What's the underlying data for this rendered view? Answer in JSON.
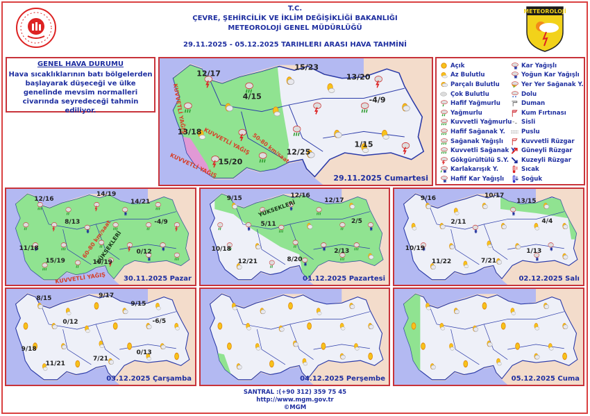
{
  "header": {
    "line1": "T.C.",
    "line2": "ÇEVRE, ŞEHİRCİLİK VE İKLİM DEĞİŞİKLİĞİ BAKANLIĞI",
    "line3": "METEOROLOJİ  GENEL  MÜDÜRLÜĞÜ",
    "dates": "29.11.2025  -  05.12.2025    TARIHLERI  ARASI  HAVA  TAHMİNİ",
    "logo_right_text": "METEOROLOJİ"
  },
  "general": {
    "title": "GENEL HAVA DURUMU",
    "text": "Hava sıcaklıklarının batı bölgelerden başlayarak düşeceği ve ülke genelinde mevsim normalleri civarında seyredeceği tahmin ediliyor."
  },
  "legend": [
    {
      "icon": "acik",
      "label": "Açık"
    },
    {
      "icon": "az-bulutlu",
      "label": "Az Bulutlu"
    },
    {
      "icon": "parcali-bulutlu",
      "label": "Parçalı Bulutlu"
    },
    {
      "icon": "cok-bulutlu",
      "label": "Çok Bulutlu"
    },
    {
      "icon": "hafif-yagmurlu",
      "label": "Hafif Yağmurlu"
    },
    {
      "icon": "yagmurlu",
      "label": "Yağmurlu"
    },
    {
      "icon": "kuvvetli-yagmurlu",
      "label": "Kuvvetli Yağmurlu"
    },
    {
      "icon": "hafif-saganak",
      "label": "Hafif Sağanak Y."
    },
    {
      "icon": "saganak",
      "label": "Sağanak Yağışlı"
    },
    {
      "icon": "kuvvetli-saganak",
      "label": "Kuvvetli Sağanak Y"
    },
    {
      "icon": "gokgurultulu",
      "label": "Gökgürültülü S.Y."
    },
    {
      "icon": "karlakarisik",
      "label": "Karlakarışık Y."
    },
    {
      "icon": "hafif-kar",
      "label": "Hafif Kar Yağışlı"
    },
    {
      "icon": "kar",
      "label": "Kar Yağışlı"
    },
    {
      "icon": "yogun-kar",
      "label": "Yoğun Kar Yağışlı"
    },
    {
      "icon": "yer-yer-saganak",
      "label": "Yer Yer Sağanak Y."
    },
    {
      "icon": "dolu",
      "label": "Dolu"
    },
    {
      "icon": "duman",
      "label": "Duman"
    },
    {
      "icon": "kum-firtinasi",
      "label": "Kum Fırtınası"
    },
    {
      "icon": "sisli",
      "label": "Sisli"
    },
    {
      "icon": "puslu",
      "label": "Puslu"
    },
    {
      "icon": "kuvvetli-ruzgar",
      "label": "Kuvvetli Rüzgar"
    },
    {
      "icon": "guneyli-ruzgar",
      "label": "Güneyli Rüzgar"
    },
    {
      "icon": "kuzeyli-ruzgar",
      "label": "Kuzeyli Rüzgar"
    },
    {
      "icon": "sicak",
      "label": "Sıcak"
    },
    {
      "icon": "soguk",
      "label": "Soğuk"
    }
  ],
  "colors": {
    "title_blue": "#1f2fa0",
    "border_red": "#c8333a",
    "rain_zone": "#7fe07f",
    "warning_zone": "#f08ce0",
    "sea": "#b3b9f2",
    "land": "#eef0f8",
    "neighbors": "#f3dccb"
  },
  "maps": [
    {
      "date": "29.11.2025 Cumartesi",
      "temps": [
        "12/17",
        "15/23",
        "13/20",
        "4/15",
        "-4/9",
        "13/18",
        "12/25",
        "1/15",
        "15/20"
      ],
      "annotations": [
        "KUVVETLİ YAĞIŞ",
        "KUVVETLİ YAĞIŞ",
        "50-80 km/saat",
        "KUVVETLİ YAĞIŞ"
      ],
      "icons": [
        "gokgurultulu",
        "saganak",
        "parcali-bulutlu",
        "az-bulutlu"
      ]
    },
    {
      "date": "30.11.2025 Pazar",
      "temps": [
        "12/16",
        "14/19",
        "14/21",
        "8/13",
        "-4/9",
        "11/18",
        "15/19",
        "0/12",
        "10/19"
      ],
      "annotations": [
        "60-80 km/saat",
        "YÜKSEKLERİ",
        "KUVVETLİ YAĞIŞ"
      ],
      "icons": [
        "saganak",
        "yagmurlu",
        "gokgurultulu",
        "kar"
      ]
    },
    {
      "date": "01.12.2025 Pazartesi",
      "temps": [
        "9/15",
        "12/16",
        "12/17",
        "5/11",
        "2/5",
        "10/18",
        "12/21",
        "2/13",
        "8/20"
      ],
      "annotations": [
        "YÜKSEKLERİ"
      ],
      "icons": [
        "parcali-bulutlu",
        "yagmurlu",
        "kar",
        "saganak"
      ]
    },
    {
      "date": "02.12.2025 Salı",
      "temps": [
        "9/16",
        "10/17",
        "13/15",
        "2/11",
        "4/4",
        "10/19",
        "11/22",
        "7/21",
        "1/13"
      ],
      "annotations": [],
      "icons": [
        "parcali-bulutlu",
        "az-bulutlu",
        "parcali-bulutlu",
        "kar"
      ]
    },
    {
      "date": "03.12.2025 Çarşamba",
      "temps": [
        "8/15",
        "9/17",
        "9/15",
        "0/12",
        "-6/5",
        "9/18",
        "11/21",
        "7/21",
        "0/13"
      ],
      "annotations": [],
      "icons": [
        "parcali-bulutlu",
        "az-bulutlu",
        "acik"
      ]
    },
    {
      "date": "04.12.2025 Perşembe",
      "temps": [],
      "annotations": [],
      "icons": [
        "az-bulutlu",
        "parcali-bulutlu",
        "acik"
      ]
    },
    {
      "date": "05.12.2025 Cuma",
      "temps": [],
      "annotations": [],
      "icons": [
        "az-bulutlu",
        "parcali-bulutlu",
        "acik"
      ]
    }
  ],
  "footer": {
    "phone": "SANTRAL :(+90 312) 359 75 45",
    "url": "http://www.mgm.gov.tr",
    "copyright": "©MGM"
  }
}
